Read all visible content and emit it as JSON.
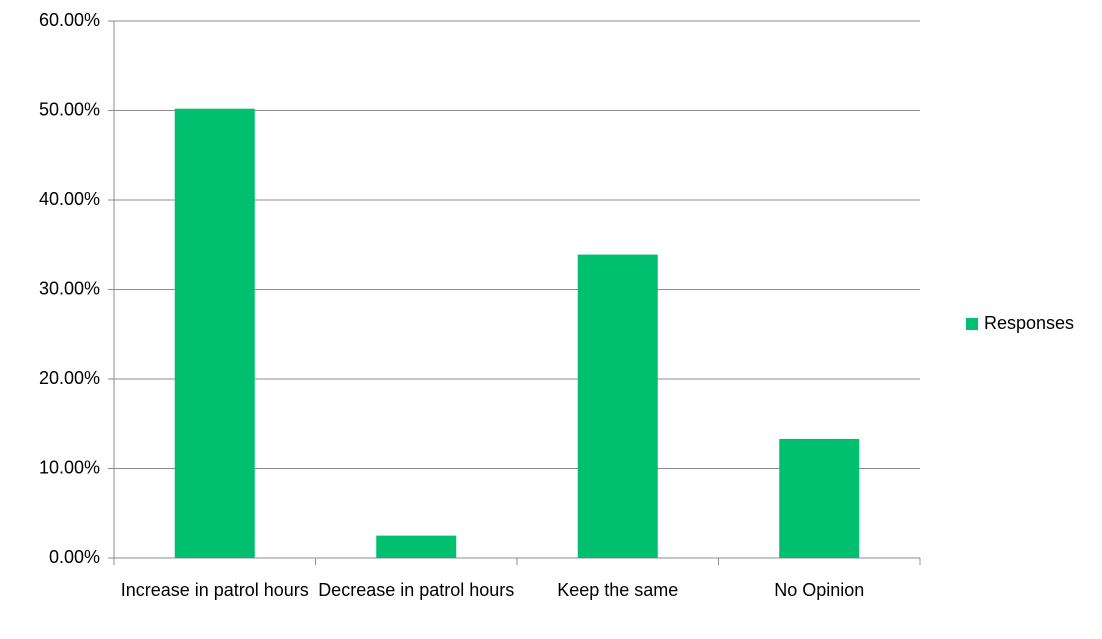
{
  "chart_data": {
    "type": "bar",
    "categories": [
      "Increase in patrol hours",
      "Decrease in patrol hours",
      "Keep the same",
      "No Opinion"
    ],
    "series": [
      {
        "name": "Responses",
        "color": "#00bf6f",
        "values": [
          50.2,
          2.5,
          33.9,
          13.3
        ]
      }
    ],
    "ylim": [
      0,
      60
    ],
    "yticks": [
      {
        "value": 0,
        "label": "0.00%"
      },
      {
        "value": 10,
        "label": "10.00%"
      },
      {
        "value": 20,
        "label": "20.00%"
      },
      {
        "value": 30,
        "label": "30.00%"
      },
      {
        "value": 40,
        "label": "40.00%"
      },
      {
        "value": 50,
        "label": "50.00%"
      },
      {
        "value": 60,
        "label": "60.00%"
      }
    ],
    "grid": true,
    "legend": "right"
  }
}
